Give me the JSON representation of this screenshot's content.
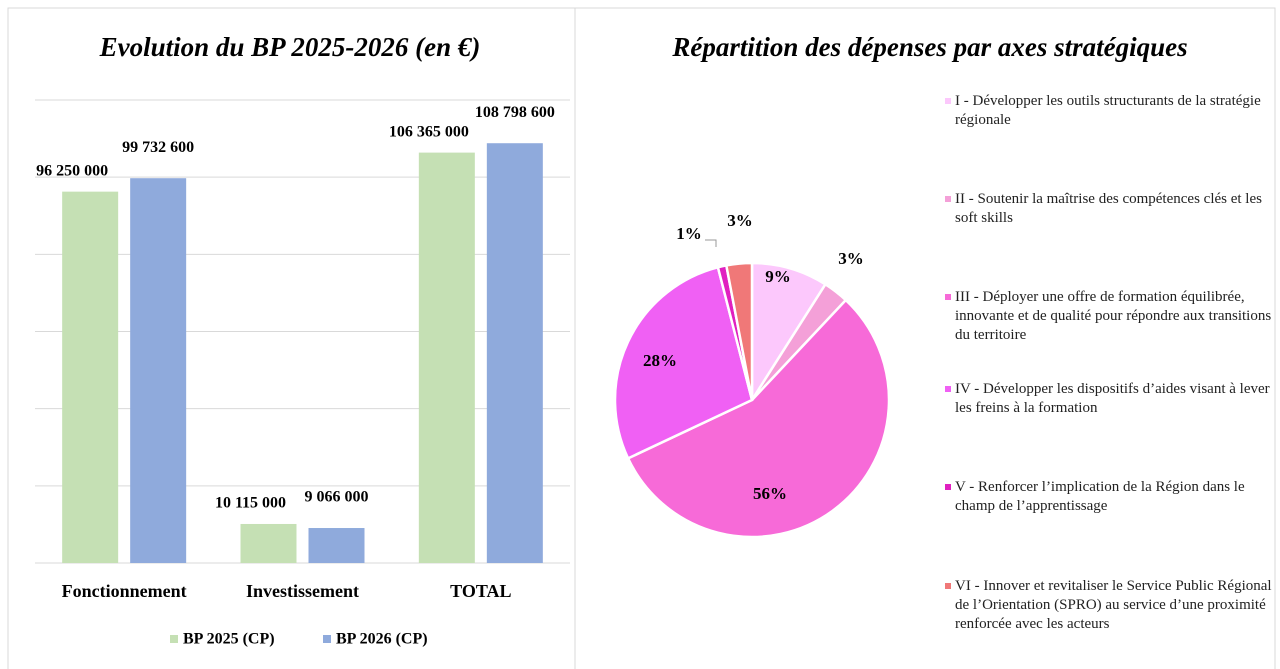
{
  "chart_data": [
    {
      "type": "bar",
      "title": "Evolution du BP 2025-2026 (en €)",
      "categories": [
        "Fonctionnement",
        "Investissement",
        "TOTAL"
      ],
      "series": [
        {
          "name": "BP 2025 (CP)",
          "color": "#c5e0b4",
          "values": [
            96250000,
            10115000,
            106365000
          ],
          "value_labels": [
            "96 250 000",
            "10 115 000",
            "106 365 000"
          ]
        },
        {
          "name": "BP 2026 (CP)",
          "color": "#8faadc",
          "values": [
            99732600,
            9066000,
            108798600
          ],
          "value_labels": [
            "99 732 600",
            "9 066 000",
            "108 798 600"
          ]
        }
      ],
      "ylim": [
        0,
        120000000
      ],
      "yticks": [
        0,
        20000000,
        40000000,
        60000000,
        80000000,
        100000000,
        120000000
      ],
      "grid": true,
      "legend": "bottom"
    },
    {
      "type": "pie",
      "title": "Répartition des dépenses par axes stratégiques",
      "categories": [
        "I - Développer les outils structurants de la stratégie régionale",
        "II - Soutenir la maîtrise des compétences clés et les soft skills",
        "III - Déployer une offre de formation équilibrée, innovante et de qualité pour répondre aux transitions du territoire",
        "IV - Développer les dispositifs d’aides visant à lever les freins à la formation",
        "V - Renforcer l’implication de la Région dans le champ de l’apprentissage",
        "VI - Innover et revitaliser le Service Public Régional de l’Orientation (SPRO) au service d’une proximité renforcée avec les acteurs"
      ],
      "values": [
        9,
        3,
        56,
        28,
        1,
        3
      ],
      "value_labels": [
        "9%",
        "3%",
        "56%",
        "28%",
        "1%",
        "3%"
      ],
      "colors": [
        "#fcc8fc",
        "#f4a0d8",
        "#f76ad8",
        "#f060f4",
        "#e020c0",
        "#f07878"
      ],
      "legend": "right"
    }
  ]
}
